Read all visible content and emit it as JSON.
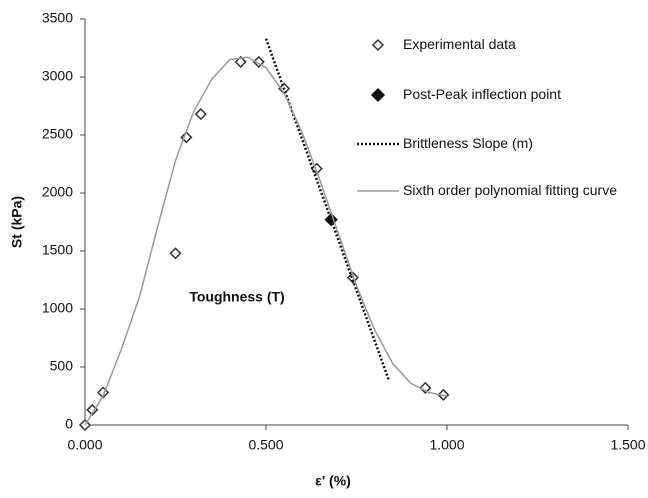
{
  "chart_data": {
    "type": "scatter",
    "x_label": "ε' (%)",
    "y_label": "St (kPa)",
    "annotations": [
      {
        "text": "Toughness (T)",
        "x": 0.42,
        "y": 1095
      }
    ],
    "xlim": [
      0,
      1.5
    ],
    "ylim": [
      0,
      3500
    ],
    "xticks": [
      {
        "value": 0,
        "label": "0.000"
      },
      {
        "value": 0.5,
        "label": "0.500"
      },
      {
        "value": 1,
        "label": "1.000"
      },
      {
        "value": 1.5,
        "label": "1.500"
      }
    ],
    "yticks": [
      0,
      500,
      1000,
      1500,
      2000,
      2500,
      3000,
      3500
    ],
    "grid": false,
    "legend": "top-right",
    "series": [
      {
        "name": "Experimental data",
        "color": "#333333",
        "marker": "diamond-open",
        "line": null,
        "x": [
          0,
          0.02,
          0.05,
          0.25,
          0.28,
          0.32,
          0.43,
          0.48,
          0.55,
          0.64,
          0.74,
          0.94,
          0.99
        ],
        "values": [
          0,
          130,
          280,
          1480,
          2480,
          2680,
          3130,
          3130,
          2900,
          2210,
          1270,
          320,
          260
        ]
      },
      {
        "name": "Post-Peak inflection point",
        "color": "#111111",
        "marker": "diamond-filled",
        "line": null,
        "x": [
          0.68
        ],
        "values": [
          1770
        ]
      },
      {
        "name": "Brittleness Slope (m)",
        "color": "#111111",
        "marker": null,
        "line": "dotted",
        "x": [
          0.5,
          0.84
        ],
        "values": [
          3330,
          380
        ]
      },
      {
        "name": "Sixth order polynomial fitting curve",
        "color": "#9a9a9a",
        "marker": null,
        "line": "solid",
        "x": [
          0,
          0.05,
          0.1,
          0.15,
          0.2,
          0.25,
          0.3,
          0.35,
          0.4,
          0.45,
          0.5,
          0.55,
          0.6,
          0.65,
          0.7,
          0.75,
          0.8,
          0.85,
          0.9,
          0.95,
          1.0
        ],
        "values": [
          0,
          250,
          650,
          1100,
          1700,
          2280,
          2700,
          2980,
          3150,
          3170,
          3080,
          2860,
          2520,
          2100,
          1650,
          1200,
          820,
          530,
          360,
          280,
          250
        ]
      }
    ]
  }
}
